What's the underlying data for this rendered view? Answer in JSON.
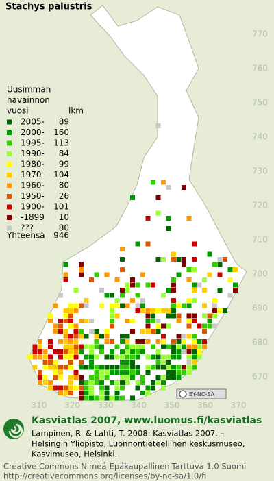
{
  "title": "Stachys palustris",
  "legend": {
    "header": [
      "Uusimman",
      "havainnon",
      "vuosi"
    ],
    "count_header": "lkm",
    "rows": [
      {
        "label": "2005-",
        "count": 89,
        "color": "#006400"
      },
      {
        "label": "2000-",
        "count": 160,
        "color": "#009900"
      },
      {
        "label": "1995-",
        "count": 113,
        "color": "#33cc00"
      },
      {
        "label": "1990-",
        "count": 84,
        "color": "#99ff33"
      },
      {
        "label": "1980-",
        "count": 99,
        "color": "#ffff00"
      },
      {
        "label": "1970-",
        "count": 104,
        "color": "#ffcc00"
      },
      {
        "label": "1960-",
        "count": 80,
        "color": "#ff9900"
      },
      {
        "label": "1950-",
        "count": 26,
        "color": "#e05500"
      },
      {
        "label": "1900-",
        "count": 101,
        "color": "#cc0000"
      },
      {
        "label": "-1899",
        "count": 10,
        "color": "#800000"
      },
      {
        "label": "???",
        "count": 80,
        "color": "#c8c8c8"
      }
    ],
    "total_label": "Yhteensä",
    "total": 946
  },
  "map": {
    "y_labels": [
      770,
      760,
      750,
      740,
      730,
      720,
      710,
      700,
      690,
      680,
      670
    ],
    "x_labels": [
      310,
      320,
      330,
      340,
      350,
      360,
      370
    ],
    "license_badge": "BY-NC-SA"
  },
  "footer": {
    "heading": "Kasviatlas 2007, www.luomus.fi/kasviatlas",
    "citation": [
      "Lampinen, R. & Lahti, T. 2008: Kasviatlas 2007. –",
      "Helsingin Yliopisto, Luonnontieteellinen keskusmuseo,",
      "Kasvimuseo, Helsinki."
    ],
    "license": [
      "Creative Commons Nimeä-Epäkaupallinen-Tarttuva 1.0 Suomi",
      "http://creativecommons.org/licenses/by-nc-sa/1.0/fi"
    ]
  }
}
